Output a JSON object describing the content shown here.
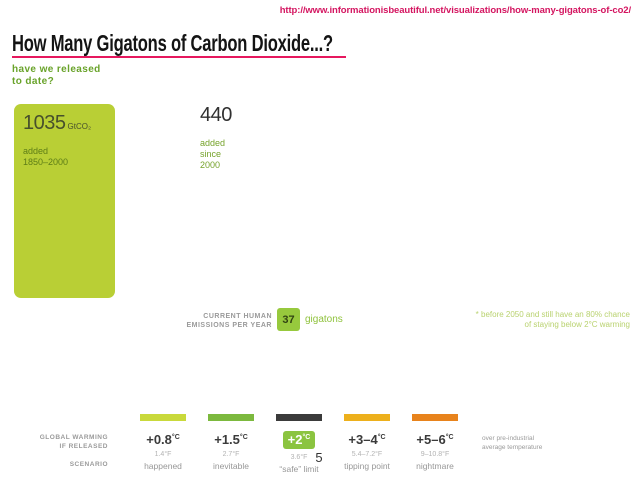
{
  "header": {
    "url": "http://www.informationisbeautiful.net/visualizations/how-many-gigatons-of-co2/",
    "title": "How Many Gigatons of Carbon Dioxide...?",
    "subtitle_line1": "have we released",
    "subtitle_line2": "to date?"
  },
  "colors": {
    "accent_red": "#e6185e",
    "bar_green": "#b9cf35",
    "emissions_green": "#97c93d",
    "badge_green": "#8bc440",
    "text_green": "#76a32b",
    "pale_green": "#b9d26f",
    "dark": "#3b3b3b",
    "amber": "#edb01c",
    "orange": "#e8831c"
  },
  "released_to_date": {
    "bar1": {
      "value": "1035",
      "unit": "GtCO₂",
      "caption_line1": "added",
      "caption_line2": "1850–2000"
    },
    "bar2": {
      "value": "440",
      "caption_line1": "added",
      "caption_line2": "since",
      "caption_line3": "2000"
    }
  },
  "current_emissions": {
    "label_line1": "CURRENT HUMAN",
    "label_line2": "EMISSIONS PER YEAR",
    "value": "37",
    "unit": "gigatons"
  },
  "footnote": {
    "line1": "* before 2050 and still have an 80% chance",
    "line2": "of staying below 2°C warming"
  },
  "scenario_legend": {
    "axis_label_line1": "GLOBAL WARMING",
    "axis_label_line2": "IF RELEASED",
    "scenario_label": "SCENARIO",
    "right_note_line1": "over pre-industrial",
    "right_note_line2": "average temperature",
    "items": [
      {
        "c": "+0.8",
        "unit": "°C",
        "f": "1.4°F",
        "label": "happened",
        "color": "#c9d93b",
        "highlighted": false
      },
      {
        "c": "+1.5",
        "unit": "°C",
        "f": "2.7°F",
        "label": "inevitable",
        "color": "#7cb93e",
        "highlighted": false
      },
      {
        "c": "+2",
        "unit": "°C",
        "f": "3.6°F",
        "label": "“safe” limit",
        "color": "#3b3b3b",
        "highlighted": true
      },
      {
        "c": "+3–4",
        "unit": "°C",
        "f": "5.4–7.2°F",
        "label": "tipping point",
        "color": "#edb01c",
        "highlighted": false
      },
      {
        "c": "+5–6",
        "unit": "°C",
        "f": "9–10.8°F",
        "label": "nightmare",
        "color": "#e8831c",
        "highlighted": false
      }
    ]
  },
  "page_number": "5",
  "chart_data": {
    "type": "bar",
    "title": "How Many Gigatons of Carbon Dioxide...?",
    "subtitle": "have we released to date?",
    "unit": "GtCO₂ (gigatons of carbon dioxide)",
    "categories": [
      "added 1850–2000",
      "added since 2000"
    ],
    "values": [
      1035,
      440
    ],
    "bar_colors": [
      "#b9cf35",
      null
    ],
    "annotations": [
      "CURRENT HUMAN EMISSIONS PER YEAR: 37 gigatons",
      "* before 2050 and still have an 80% chance of staying below 2°C warming"
    ],
    "scenario_scale": [
      {
        "warming": "+0.8°C",
        "fahrenheit": "1.4°F",
        "scenario": "happened",
        "color": "#c9d93b"
      },
      {
        "warming": "+1.5°C",
        "fahrenheit": "2.7°F",
        "scenario": "inevitable",
        "color": "#7cb93e"
      },
      {
        "warming": "+2°C",
        "fahrenheit": "3.6°F",
        "scenario": "“safe” limit",
        "color": "#3b3b3b"
      },
      {
        "warming": "+3–4°C",
        "fahrenheit": "5.4–7.2°F",
        "scenario": "tipping point",
        "color": "#edb01c"
      },
      {
        "warming": "+5–6°C",
        "fahrenheit": "9–10.8°F",
        "scenario": "nightmare",
        "color": "#e8831c"
      }
    ],
    "scale_note": "over pre-industrial average temperature",
    "legend_position": "bottom",
    "grid": false
  }
}
